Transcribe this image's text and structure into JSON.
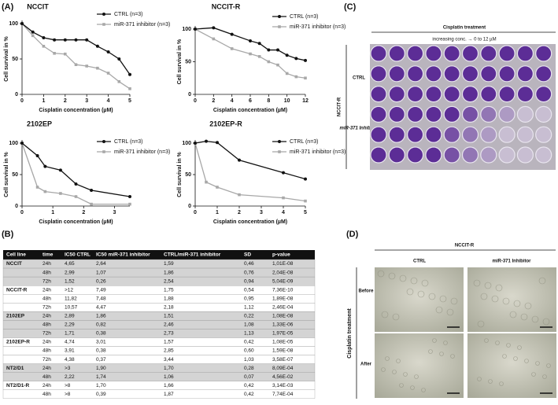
{
  "panel_labels": [
    "(A)",
    "(B)",
    "(C)",
    "(D)"
  ],
  "chart_data": [
    {
      "type": "line",
      "title": "NCCIT",
      "x_label": "Cisplatin concentration (µM)",
      "y_label": "Cell survival in %",
      "x": [
        0,
        0.5,
        1,
        1.5,
        2,
        2.5,
        3,
        3.5,
        4,
        4.5,
        5
      ],
      "xlim": [
        0,
        5
      ],
      "xticks": [
        0,
        1,
        2,
        3,
        4,
        5
      ],
      "ylim": [
        0,
        100
      ],
      "yticks": [
        0,
        50,
        100
      ],
      "legend": "upper right",
      "series": [
        {
          "name": "CTRL (n=3)",
          "color": "#111111",
          "values": [
            100,
            88,
            80,
            77,
            77,
            77,
            77,
            68,
            60,
            50,
            28
          ]
        },
        {
          "name": "miR-371 inhibitor (n=3)",
          "color": "#a8a8a8",
          "values": [
            100,
            83,
            68,
            58,
            57,
            42,
            40,
            37,
            30,
            18,
            8
          ]
        }
      ]
    },
    {
      "type": "line",
      "title": "NCCIT-R",
      "x_label": "Cisplatin concentration (µM)",
      "y_label": "Cell survival in %",
      "x": [
        0,
        2,
        4,
        6,
        7,
        8,
        9,
        10,
        11,
        12
      ],
      "xlim": [
        0,
        12
      ],
      "xticks": [
        0,
        2,
        4,
        6,
        8,
        10,
        12
      ],
      "ylim": [
        0,
        100
      ],
      "yticks": [
        0,
        50,
        100
      ],
      "legend": "upper right",
      "series": [
        {
          "name": "CTRL (n=3)",
          "color": "#111111",
          "values": [
            100,
            102,
            92,
            82,
            78,
            68,
            68,
            60,
            55,
            52
          ]
        },
        {
          "name": "miR-371 inhibitor (n=3)",
          "color": "#a8a8a8",
          "values": [
            100,
            85,
            70,
            62,
            58,
            50,
            45,
            32,
            27,
            25
          ]
        }
      ]
    },
    {
      "type": "line",
      "title": "2102EP",
      "x_label": "Cisplatin concentration (µM)",
      "y_label": "Cell survival in %",
      "x": [
        0,
        0.5,
        0.75,
        1.25,
        1.75,
        2.25,
        3.5
      ],
      "xlim": [
        0,
        3.5
      ],
      "xticks": [
        0,
        1,
        2,
        3
      ],
      "ylim": [
        0,
        100
      ],
      "yticks": [
        0,
        50,
        100
      ],
      "legend": "upper right",
      "series": [
        {
          "name": "CTRL (n=3)",
          "color": "#111111",
          "values": [
            100,
            80,
            63,
            57,
            35,
            25,
            15
          ]
        },
        {
          "name": "miR-371 inhibitor (n=3)",
          "color": "#a8a8a8",
          "values": [
            100,
            30,
            23,
            20,
            15,
            3,
            3
          ]
        }
      ]
    },
    {
      "type": "line",
      "title": "2102EP-R",
      "x_label": "Cisplatin concentration (µM)",
      "y_label": "Cell survival in %",
      "x": [
        0,
        0.5,
        1,
        2,
        4,
        5
      ],
      "xlim": [
        0,
        5
      ],
      "xticks": [
        0,
        1,
        2,
        3,
        4,
        5
      ],
      "ylim": [
        0,
        100
      ],
      "yticks": [
        0,
        50,
        100
      ],
      "legend": "upper right",
      "series": [
        {
          "name": "CTRL (n=3)",
          "color": "#111111",
          "values": [
            100,
            103,
            101,
            73,
            53,
            43
          ]
        },
        {
          "name": "miR-371 inhibitor (n=3)",
          "color": "#a8a8a8",
          "values": [
            100,
            38,
            30,
            18,
            13,
            8
          ]
        }
      ]
    }
  ],
  "table": {
    "header": [
      "Cell line",
      "time",
      "IC50  CTRL",
      "IC50 miR-371  inhibitor",
      "CTRL/miR-371  inhibitor",
      "SD",
      "p-value"
    ],
    "rows": [
      [
        "NCCIT",
        "24h",
        "4,65",
        "2,64",
        "1,59",
        "0,46",
        "1,01E-08"
      ],
      [
        null,
        "48h",
        "2,99",
        "1,07",
        "1,86",
        "0,76",
        "2,04E-08"
      ],
      [
        null,
        "72h",
        "1,52",
        "0,26",
        "2,54",
        "0,94",
        "5,04E-09"
      ],
      [
        "NCCIT-R",
        "24h",
        ">12",
        "7,49",
        "1,75",
        "0,54",
        "7,36E-10"
      ],
      [
        null,
        "48h",
        "11,82",
        "7,48",
        "1,88",
        "0,95",
        "1,89E-08"
      ],
      [
        null,
        "72h",
        "10,57",
        "4,47",
        "2,18",
        "1,12",
        "2,46E-04"
      ],
      [
        "2102EP",
        "24h",
        "2,89",
        "1,86",
        "1,51",
        "0,22",
        "1,08E-08"
      ],
      [
        null,
        "48h",
        "2,29",
        "0,82",
        "2,46",
        "1,08",
        "1,33E-06"
      ],
      [
        null,
        "72h",
        "1,71",
        "0,38",
        "2,73",
        "1,13",
        "1,97E-05"
      ],
      [
        "2102EP-R",
        "24h",
        "4,74",
        "3,01",
        "1,57",
        "0,42",
        "1,08E-05"
      ],
      [
        null,
        "48h",
        "3,91",
        "0,38",
        "2,85",
        "0,60",
        "1,59E-08"
      ],
      [
        null,
        "72h",
        "4,38",
        "0,37",
        "3,44",
        "1,03",
        "3,58E-07"
      ],
      [
        "NT2/D1",
        "24h",
        ">3",
        "1,90",
        "1,70",
        "0,28",
        "8,09E-04"
      ],
      [
        null,
        "48h",
        "2,22",
        "1,74",
        "1,06",
        "0,07",
        "4,56E-02"
      ],
      [
        "NT2/D1-R",
        "24h",
        ">8",
        "1,70",
        "1,66",
        "0,42",
        "3,14E-03"
      ],
      [
        null,
        "48h",
        ">8",
        "0,39",
        "1,87",
        "0,42",
        "7,74E-04"
      ]
    ]
  },
  "panel_c": {
    "heading": "Cisplatin treatment",
    "subheading": "increasing conc. → 0 to 12 µM",
    "cell_line": "NCCIT-R",
    "row_labels": [
      "CTRL",
      "miR-371 Inhibitor"
    ]
  },
  "panel_d": {
    "cell_line": "NCCIT-R",
    "column_labels": [
      "CTRL",
      "miR-371 Inhibitor"
    ],
    "row_labels": [
      "Before",
      "After"
    ],
    "side_label": "Cisplatin treatment"
  }
}
